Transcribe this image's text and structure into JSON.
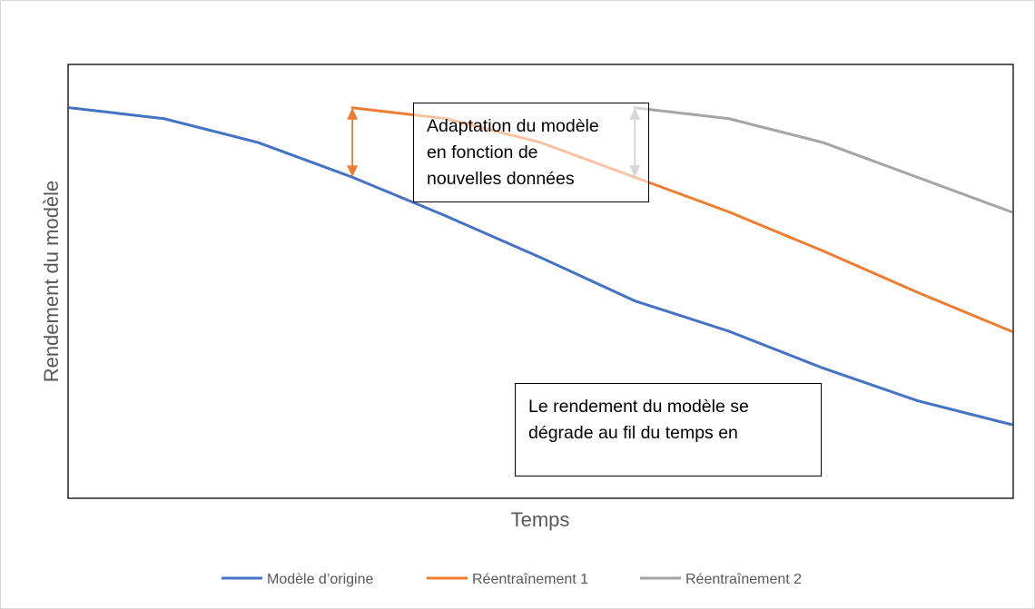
{
  "chart_data": {
    "type": "line",
    "title": "",
    "xlabel": "Temps",
    "ylabel": "Rendement du modèle",
    "xlim": [
      0,
      10
    ],
    "ylim": [
      0,
      100
    ],
    "grid": false,
    "legend_position": "bottom",
    "series": [
      {
        "name": "Modèle d’origine",
        "color": "#4472C4",
        "x": [
          0,
          1,
          2,
          3,
          4,
          5,
          6,
          7,
          8,
          9,
          10
        ],
        "y": [
          90,
          87.5,
          82,
          74,
          65,
          55.5,
          45.5,
          38.5,
          30,
          22.5,
          17
        ]
      },
      {
        "name": "Réentraînement 1",
        "color": "#ED7D31",
        "x": [
          3,
          4,
          5,
          6,
          7,
          8,
          9,
          10
        ],
        "y": [
          90,
          87.5,
          82,
          74,
          66,
          57,
          47.5,
          38.5
        ]
      },
      {
        "name": "Réentraînement 2",
        "color": "#A5A5A5",
        "x": [
          6,
          7,
          8,
          9,
          10
        ],
        "y": [
          90,
          87.5,
          82,
          74,
          66
        ]
      }
    ],
    "annotations": [
      {
        "name": "adapt",
        "lines": [
          "Adaptation du modèle",
          "en fonction de",
          "nouvelles données"
        ]
      },
      {
        "name": "degrade",
        "lines": [
          "Le rendement du modèle se",
          "dégrade au fil du temps en"
        ]
      }
    ],
    "arrows": [
      {
        "x": 3,
        "y_from": 90,
        "y_to": 74,
        "color": "#ED7D31"
      },
      {
        "x": 6,
        "y_from": 90,
        "y_to": 74,
        "color": "#A5A5A5"
      }
    ]
  }
}
